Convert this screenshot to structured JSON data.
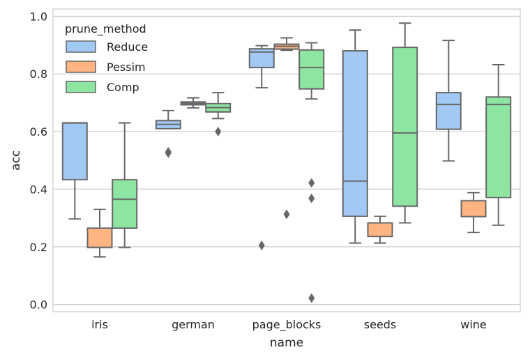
{
  "chart_data": {
    "type": "box",
    "title": "",
    "xlabel": "name",
    "ylabel": "acc",
    "ylim": [
      -0.025,
      1.025
    ],
    "yticks": [
      0.0,
      0.2,
      0.4,
      0.6,
      0.8,
      1.0
    ],
    "ytick_labels": [
      "0.0",
      "0.2",
      "0.4",
      "0.6",
      "0.8",
      "1.0"
    ],
    "grid": true,
    "legend": {
      "title": "prune_method",
      "placement": "top-left"
    },
    "categories": [
      "iris",
      "german",
      "page_blocks",
      "seeds",
      "wine"
    ],
    "series": [
      {
        "name": "Reduce",
        "color": "#a1c9f4",
        "boxes": [
          {
            "category": "iris",
            "whislo": 0.297,
            "q1": 0.433,
            "med": 0.63,
            "q3": 0.63,
            "whishi": 0.63,
            "fliers": []
          },
          {
            "category": "german",
            "whislo": 0.61,
            "q1": 0.61,
            "med": 0.625,
            "q3": 0.638,
            "whishi": 0.673,
            "fliers": [
              0.525,
              0.53
            ]
          },
          {
            "category": "page_blocks",
            "whislo": 0.752,
            "q1": 0.822,
            "med": 0.876,
            "q3": 0.887,
            "whishi": 0.898,
            "fliers": [
              0.205
            ]
          },
          {
            "category": "seeds",
            "whislo": 0.213,
            "q1": 0.306,
            "med": 0.428,
            "q3": 0.88,
            "whishi": 0.952,
            "fliers": []
          },
          {
            "category": "wine",
            "whislo": 0.498,
            "q1": 0.608,
            "med": 0.694,
            "q3": 0.735,
            "whishi": 0.916,
            "fliers": []
          }
        ]
      },
      {
        "name": "Pessim",
        "color": "#ffb482",
        "boxes": [
          {
            "category": "iris",
            "whislo": 0.165,
            "q1": 0.198,
            "med": 0.198,
            "q3": 0.265,
            "whishi": 0.33,
            "fliers": []
          },
          {
            "category": "german",
            "whislo": 0.682,
            "q1": 0.693,
            "med": 0.698,
            "q3": 0.703,
            "whishi": 0.717,
            "fliers": []
          },
          {
            "category": "page_blocks",
            "whislo": 0.882,
            "q1": 0.886,
            "med": 0.896,
            "q3": 0.903,
            "whishi": 0.925,
            "fliers": [
              0.313
            ]
          },
          {
            "category": "seeds",
            "whislo": 0.213,
            "q1": 0.236,
            "med": 0.236,
            "q3": 0.283,
            "whishi": 0.306,
            "fliers": []
          },
          {
            "category": "wine",
            "whislo": 0.25,
            "q1": 0.305,
            "med": 0.305,
            "q3": 0.36,
            "whishi": 0.388,
            "fliers": []
          }
        ]
      },
      {
        "name": "Comp",
        "color": "#8de5a1",
        "boxes": [
          {
            "category": "iris",
            "whislo": 0.198,
            "q1": 0.265,
            "med": 0.365,
            "q3": 0.433,
            "whishi": 0.63,
            "fliers": []
          },
          {
            "category": "german",
            "whislo": 0.645,
            "q1": 0.668,
            "med": 0.683,
            "q3": 0.697,
            "whishi": 0.735,
            "fliers": [
              0.6
            ]
          },
          {
            "category": "page_blocks",
            "whislo": 0.713,
            "q1": 0.748,
            "med": 0.822,
            "q3": 0.883,
            "whishi": 0.908,
            "fliers": [
              0.422,
              0.368,
              0.022
            ]
          },
          {
            "category": "seeds",
            "whislo": 0.283,
            "q1": 0.341,
            "med": 0.595,
            "q3": 0.892,
            "whishi": 0.976,
            "fliers": []
          },
          {
            "category": "wine",
            "whislo": 0.275,
            "q1": 0.371,
            "med": 0.694,
            "q3": 0.72,
            "whishi": 0.832,
            "fliers": []
          }
        ]
      }
    ]
  }
}
